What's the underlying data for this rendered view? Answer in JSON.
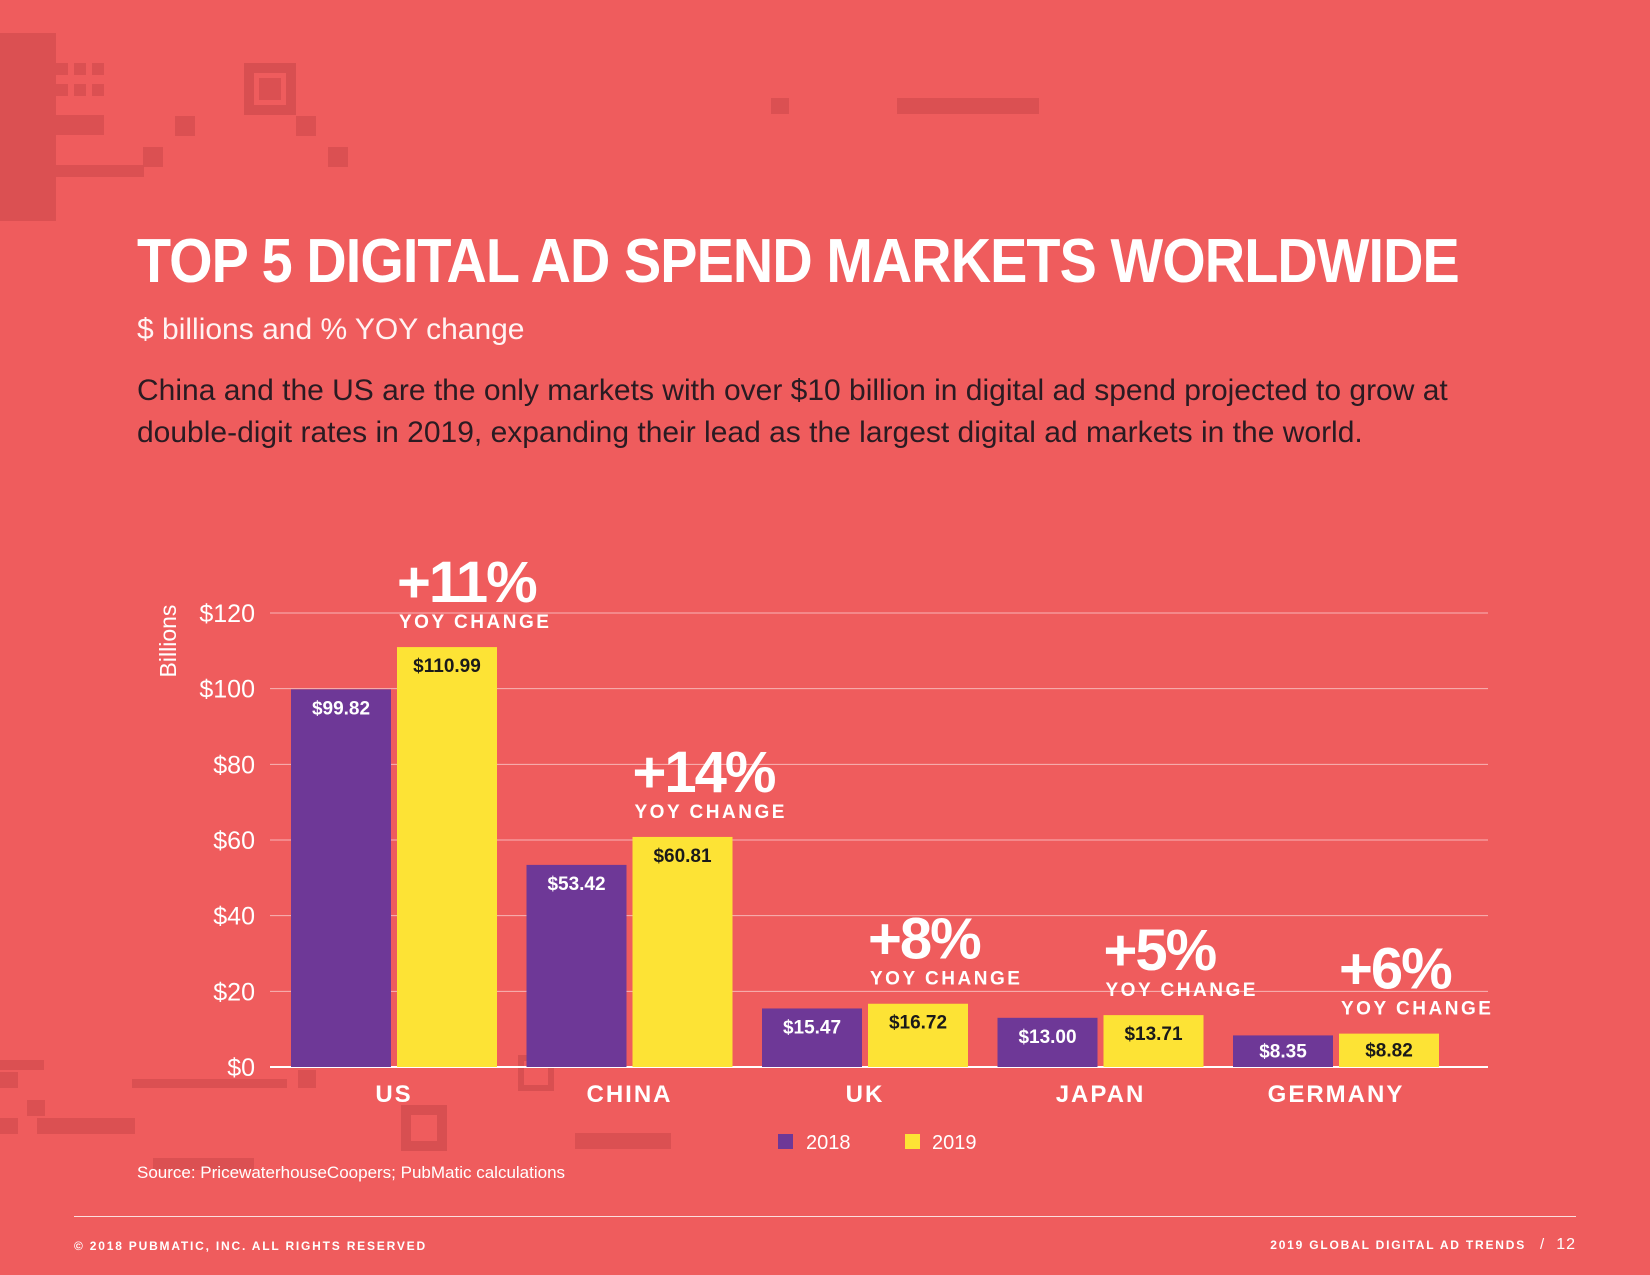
{
  "title": "TOP 5 DIGITAL AD SPEND MARKETS WORLDWIDE",
  "subtitle": "$ billions and % YOY change",
  "description": "China and the US are the only markets with over $10 billion in digital ad spend projected to grow at double-digit rates in 2019, expanding their lead as the largest digital ad markets in the world.",
  "source": "Source: PricewaterhouseCoopers; PubMatic calculations",
  "footer": {
    "copyright": "© 2018 PUBMATIC, INC. ALL RIGHTS RESERVED",
    "report": "2019 GLOBAL DIGITAL AD TRENDS",
    "separator": "/",
    "page": "12"
  },
  "colors": {
    "background": "#ef5c5d",
    "series_2018": "#6e3897",
    "series_2019": "#fde335"
  },
  "chart_data": {
    "type": "bar",
    "categories": [
      "US",
      "CHINA",
      "UK",
      "JAPAN",
      "GERMANY"
    ],
    "series": [
      {
        "name": "2018",
        "values": [
          99.82,
          53.42,
          15.47,
          13.0,
          8.35
        ],
        "labels": [
          "$99.82",
          "$53.42",
          "$15.47",
          "$13.00",
          "$8.35"
        ]
      },
      {
        "name": "2019",
        "values": [
          110.99,
          60.81,
          16.72,
          13.71,
          8.82
        ],
        "labels": [
          "$110.99",
          "$60.81",
          "$16.72",
          "$13.71",
          "$8.82"
        ]
      }
    ],
    "yoy_change": [
      "+11%",
      "+14%",
      "+8%",
      "+5%",
      "+6%"
    ],
    "yoy_caption": "YOY CHANGE",
    "ylabel": "Billions",
    "ylim": [
      0,
      120
    ],
    "yticks": [
      0,
      20,
      40,
      60,
      80,
      100,
      120
    ],
    "ytick_labels": [
      "$0",
      "$20",
      "$40",
      "$60",
      "$80",
      "$100",
      "$120"
    ],
    "grid": true,
    "legend_position": "bottom-center"
  }
}
